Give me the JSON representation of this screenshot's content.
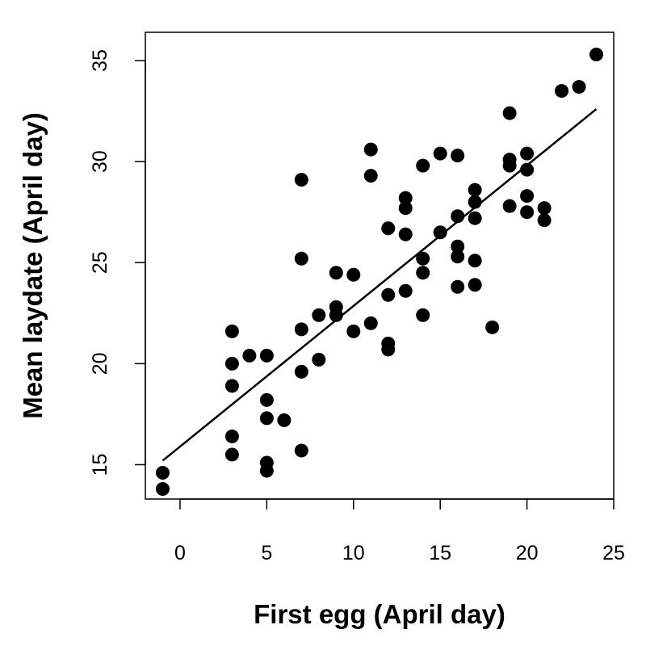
{
  "chart_data": {
    "type": "scatter",
    "title": "",
    "xlabel": "First egg (April day)",
    "ylabel": "Mean laydate (April day)",
    "xlim": [
      -2,
      25
    ],
    "ylim": [
      13.3,
      36.4
    ],
    "xticks": [
      0,
      5,
      10,
      15,
      20,
      25
    ],
    "yticks": [
      15,
      20,
      25,
      30,
      35
    ],
    "grid": false,
    "legend": "none",
    "colors": {
      "points": "#000000",
      "line": "#000000",
      "axis": "#000000"
    },
    "points": [
      [
        -1,
        14.6
      ],
      [
        -1,
        13.8
      ],
      [
        3,
        21.6
      ],
      [
        3,
        20.0
      ],
      [
        3,
        18.9
      ],
      [
        3,
        16.4
      ],
      [
        3,
        15.5
      ],
      [
        4,
        20.4
      ],
      [
        5,
        20.4
      ],
      [
        5,
        18.2
      ],
      [
        5,
        17.3
      ],
      [
        5,
        15.1
      ],
      [
        5,
        14.7
      ],
      [
        6,
        17.2
      ],
      [
        7,
        29.1
      ],
      [
        7,
        25.2
      ],
      [
        7,
        21.7
      ],
      [
        7,
        19.6
      ],
      [
        7,
        15.7
      ],
      [
        8,
        22.4
      ],
      [
        8,
        20.2
      ],
      [
        9,
        24.5
      ],
      [
        9,
        22.8
      ],
      [
        9,
        22.4
      ],
      [
        10,
        24.4
      ],
      [
        10,
        21.6
      ],
      [
        11,
        30.6
      ],
      [
        11,
        29.3
      ],
      [
        11,
        22.0
      ],
      [
        12,
        26.7
      ],
      [
        12,
        23.4
      ],
      [
        12,
        21.0
      ],
      [
        12,
        20.7
      ],
      [
        13,
        28.2
      ],
      [
        13,
        27.7
      ],
      [
        13,
        26.4
      ],
      [
        13,
        23.6
      ],
      [
        14,
        29.8
      ],
      [
        14,
        25.2
      ],
      [
        14,
        24.5
      ],
      [
        14,
        22.4
      ],
      [
        15,
        30.4
      ],
      [
        15,
        26.5
      ],
      [
        16,
        30.3
      ],
      [
        16,
        27.3
      ],
      [
        16,
        25.8
      ],
      [
        16,
        25.3
      ],
      [
        16,
        23.8
      ],
      [
        17,
        28.6
      ],
      [
        17,
        28.0
      ],
      [
        17,
        27.2
      ],
      [
        17,
        25.1
      ],
      [
        17,
        23.9
      ],
      [
        18,
        21.8
      ],
      [
        19,
        32.4
      ],
      [
        19,
        30.1
      ],
      [
        19,
        29.8
      ],
      [
        19,
        27.8
      ],
      [
        20,
        30.4
      ],
      [
        20,
        29.6
      ],
      [
        20,
        28.3
      ],
      [
        20,
        27.5
      ],
      [
        21,
        27.7
      ],
      [
        21,
        27.1
      ],
      [
        22,
        33.5
      ],
      [
        23,
        33.7
      ],
      [
        24,
        35.3
      ]
    ],
    "regression_line": {
      "x": [
        -1,
        24
      ],
      "y": [
        15.2,
        32.6
      ]
    }
  }
}
